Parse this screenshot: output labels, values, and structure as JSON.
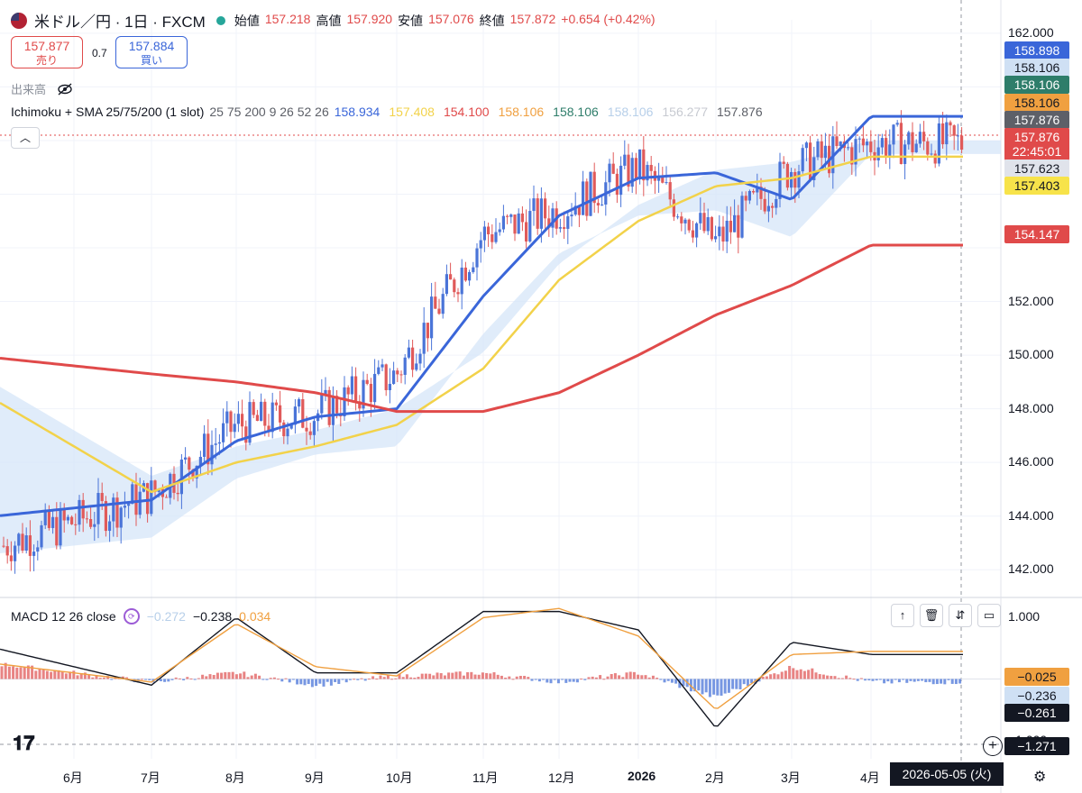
{
  "header": {
    "symbol": "米ドル／円 · 1日 · FXCM",
    "open_label": "始値",
    "open": "157.218",
    "high_label": "高値",
    "high": "157.920",
    "low_label": "安値",
    "low": "157.076",
    "close_label": "終値",
    "close": "157.872",
    "change": "+0.654 (+0.42%)"
  },
  "trade": {
    "sell_price": "157.877",
    "sell_label": "売り",
    "spread": "0.7",
    "buy_price": "157.884",
    "buy_label": "買い"
  },
  "volume_label": "出来高",
  "indicator": {
    "name": "Ichimoku + SMA 25/75/200 (1 slot)",
    "params": "25 75 200 9 26 52 26",
    "values": [
      {
        "text": "158.934",
        "color": "#3a66d9"
      },
      {
        "text": "157.408",
        "color": "#f2d24a"
      },
      {
        "text": "154.100",
        "color": "#e04a4a"
      },
      {
        "text": "158.106",
        "color": "#f0a040"
      },
      {
        "text": "158.106",
        "color": "#2e7d6a"
      },
      {
        "text": "158.106",
        "color": "#b7cfe9"
      },
      {
        "text": "156.277",
        "color": "#c7cad1"
      },
      {
        "text": "157.876",
        "color": "#5d6068"
      }
    ]
  },
  "macd": {
    "label": "MACD 12 26 close",
    "values": [
      {
        "text": "−0.272",
        "color": "#b7cfe9"
      },
      {
        "text": "−0.238",
        "color": "#131722"
      },
      {
        "text": "0.034",
        "color": "#f0a040"
      }
    ]
  },
  "price_axis": {
    "ticks": [
      "162.000",
      "152.000",
      "150.000",
      "148.000",
      "146.000",
      "144.000",
      "142.000"
    ],
    "labels": [
      {
        "text": "158.898",
        "bg": "#3a66d9",
        "fg": "#ffffff"
      },
      {
        "text": "158.106",
        "bg": "#cfe0f4",
        "fg": "#131722"
      },
      {
        "text": "158.106",
        "bg": "#2e7d6a",
        "fg": "#ffffff"
      },
      {
        "text": "158.106",
        "bg": "#f0a040",
        "fg": "#131722"
      },
      {
        "text": "157.876",
        "bg": "#5d6068",
        "fg": "#ffffff"
      },
      {
        "text": "157.876",
        "bg": "#e04a4a",
        "fg": "#ffffff"
      },
      {
        "text": "22:45:01",
        "bg": "#e04a4a",
        "fg": "#ffffff"
      },
      {
        "text": "157.623",
        "bg": "#e0e3eb",
        "fg": "#131722"
      },
      {
        "text": "157.403",
        "bg": "#f7e34a",
        "fg": "#131722"
      },
      {
        "text": "154.147",
        "bg": "#e04a4a",
        "fg": "#ffffff"
      }
    ]
  },
  "macd_axis": {
    "ticks": [
      "1.000",
      "−1.000"
    ],
    "labels": [
      {
        "text": "−0.025",
        "bg": "#f0a040",
        "fg": "#131722"
      },
      {
        "text": "−0.236",
        "bg": "#cfe0f4",
        "fg": "#131722"
      },
      {
        "text": "−0.261",
        "bg": "#131722",
        "fg": "#ffffff"
      },
      {
        "text": "−1.271",
        "bg": "#131722",
        "fg": "#ffffff"
      }
    ]
  },
  "time_axis": [
    "6月",
    "7月",
    "8月",
    "9月",
    "10月",
    "11月",
    "12月",
    "2026",
    "2月",
    "3月",
    "4月"
  ],
  "crosshair_date": "2026-05-05 (火)",
  "chart_data": [
    {
      "type": "line",
      "instrument": "USD/JPY",
      "interval": "1D",
      "x": [
        "6月",
        "7月",
        "8月",
        "9月",
        "10月",
        "11月",
        "12月",
        "2026",
        "2月",
        "3月",
        "4月"
      ],
      "ylim": [
        141.0,
        162.5
      ],
      "series": [
        {
          "name": "25",
          "color": "#3a66d9",
          "values": [
            144.3,
            144.6,
            146.8,
            147.7,
            148.0,
            152.2,
            155.2,
            156.6,
            156.8,
            155.8,
            158.9
          ]
        },
        {
          "name": "75",
          "color": "#f2d24a",
          "values": [
            146.6,
            144.9,
            146.0,
            146.6,
            147.4,
            149.5,
            152.8,
            155.0,
            156.3,
            156.6,
            157.4
          ]
        },
        {
          "name": "200",
          "color": "#e04a4a",
          "values": [
            149.6,
            149.3,
            149.0,
            148.6,
            147.9,
            147.9,
            148.6,
            150.0,
            151.5,
            152.6,
            154.1
          ]
        }
      ],
      "close_approx": [
        143.8,
        144.8,
        147.4,
        147.8,
        149.3,
        154.5,
        155.4,
        157.0,
        154.2,
        157.0,
        157.9
      ]
    },
    {
      "type": "line",
      "title": "MACD 12 26 close",
      "x": [
        "6月",
        "7月",
        "8月",
        "9月",
        "10月",
        "11月",
        "12月",
        "2026",
        "2月",
        "3月",
        "4月"
      ],
      "ylim": [
        -1.3,
        1.3
      ],
      "series": [
        {
          "name": "MACD",
          "color": "#131722",
          "values": [
            0.2,
            -0.1,
            1.0,
            0.1,
            0.1,
            1.1,
            1.1,
            0.8,
            -0.8,
            0.6,
            0.4
          ]
        },
        {
          "name": "Signal",
          "color": "#f0a040",
          "values": [
            0.1,
            -0.05,
            0.9,
            0.2,
            0.05,
            1.0,
            1.15,
            0.7,
            -0.5,
            0.4,
            0.45
          ]
        }
      ]
    }
  ]
}
